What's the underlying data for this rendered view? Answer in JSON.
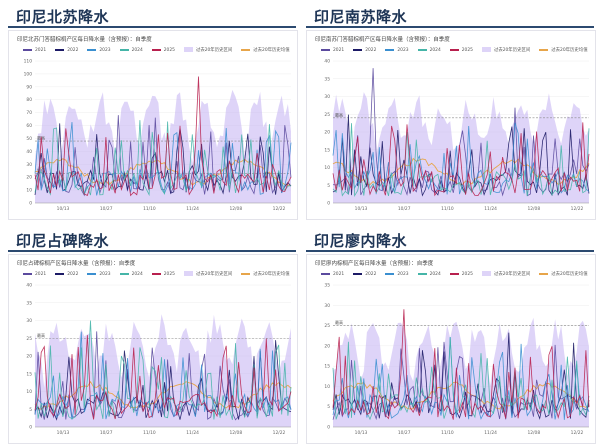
{
  "panels": [
    {
      "heading": "印尼北苏降水",
      "chart_title": "印尼北苏门答腊棕榈产区每日降水量（含预报）：自季度",
      "chart_data": {
        "type": "line",
        "ylim": [
          0,
          110
        ],
        "yticks": [
          0,
          10,
          20,
          30,
          40,
          50,
          60,
          70,
          80,
          90,
          100,
          110
        ],
        "xticks": [
          "10/13",
          "10/27",
          "11/10",
          "11/24",
          "12/08",
          "12/22"
        ],
        "ref_lines": [
          {
            "label": "最高",
            "value": 48
          },
          {
            "label": "均值",
            "value": 23
          }
        ],
        "peak_series": "2025",
        "peak_value": 98
      }
    },
    {
      "heading": "印尼南苏降水",
      "chart_title": "印尼南苏门答腊棕榈产区每日降水量（含预报）：自季度",
      "chart_data": {
        "type": "line",
        "ylim": [
          0,
          40
        ],
        "yticks": [
          0,
          5,
          10,
          15,
          20,
          25,
          30,
          35,
          40
        ],
        "xticks": [
          "10/13",
          "10/27",
          "11/10",
          "11/24",
          "12/08",
          "12/22"
        ],
        "ref_lines": [
          {
            "label": "最高",
            "value": 24
          }
        ],
        "peak_series": "2021",
        "peak_value": 38
      }
    },
    {
      "heading": "印尼占碑降水",
      "chart_title": "印尼占碑棕榈产区每日降水量（含预报）：自季度",
      "chart_data": {
        "type": "line",
        "ylim": [
          0,
          40
        ],
        "yticks": [
          0,
          5,
          10,
          15,
          20,
          25,
          30,
          35,
          40
        ],
        "xticks": [
          "10/13",
          "10/27",
          "11/10",
          "11/24",
          "12/08",
          "12/22"
        ],
        "ref_lines": [
          {
            "label": "最高",
            "value": 25
          }
        ],
        "peak_series": "2024",
        "peak_value": 30
      }
    },
    {
      "heading": "印尼廖内降水",
      "chart_title": "印尼廖内棕榈产区每日降水量（含预报）：自季度",
      "chart_data": {
        "type": "line",
        "ylim": [
          0,
          35
        ],
        "yticks": [
          0,
          5,
          10,
          15,
          20,
          25,
          30,
          35
        ],
        "xticks": [
          "10/13",
          "10/27",
          "11/10",
          "11/24",
          "12/08",
          "12/22"
        ],
        "ref_lines": [
          {
            "label": "最高",
            "value": 25
          }
        ],
        "peak_series": "2025",
        "peak_value": 29
      }
    }
  ],
  "legend": [
    {
      "name": "2021",
      "color": "#5b4a9e"
    },
    {
      "name": "2022",
      "color": "#1c1a66"
    },
    {
      "name": "2023",
      "color": "#3a8fd0"
    },
    {
      "name": "2024",
      "color": "#45b5a8"
    },
    {
      "name": "2025",
      "color": "#b8204e"
    },
    {
      "name": "过去20年历史区间",
      "color": "#c3b0f2"
    },
    {
      "name": "过去20年历史均值",
      "color": "#e7a54a"
    }
  ]
}
